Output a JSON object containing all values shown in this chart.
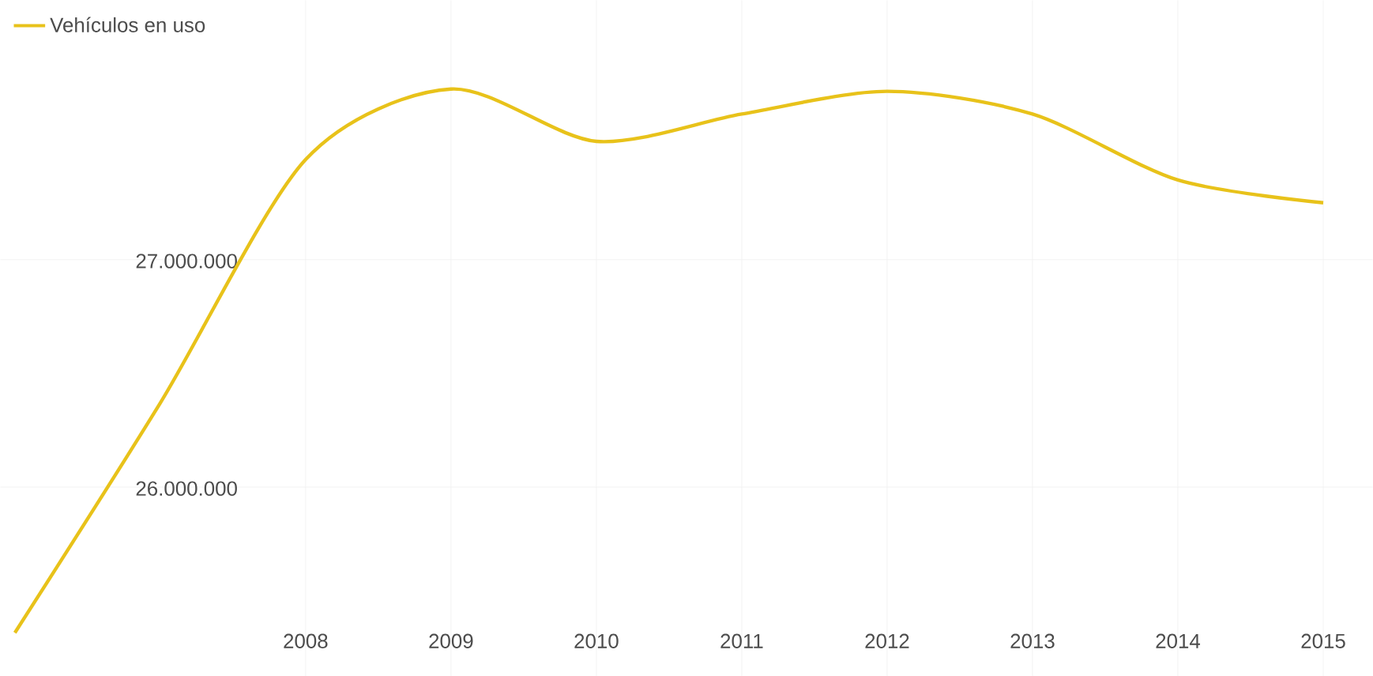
{
  "chart_data": {
    "type": "line",
    "x": [
      2006,
      2007,
      2008,
      2009,
      2010,
      2011,
      2012,
      2013,
      2014,
      2015
    ],
    "series": [
      {
        "name": "Vehículos en uso",
        "color": "#e8c21a",
        "values": [
          25360000,
          26370000,
          27440000,
          27750000,
          27520000,
          27640000,
          27740000,
          27640000,
          27350000,
          27250000
        ]
      }
    ],
    "xlim": [
      2005.9,
      2015.34
    ],
    "ylim": [
      25170000,
      28140000
    ],
    "xticks": [
      2008,
      2009,
      2010,
      2011,
      2012,
      2013,
      2014,
      2015
    ],
    "yticks": [
      {
        "value": 26000000,
        "label": "26.000.000"
      },
      {
        "value": 27000000,
        "label": "27.000.000"
      }
    ],
    "grid": true,
    "legend": "top left",
    "marker": "none",
    "line_style": "solid"
  }
}
